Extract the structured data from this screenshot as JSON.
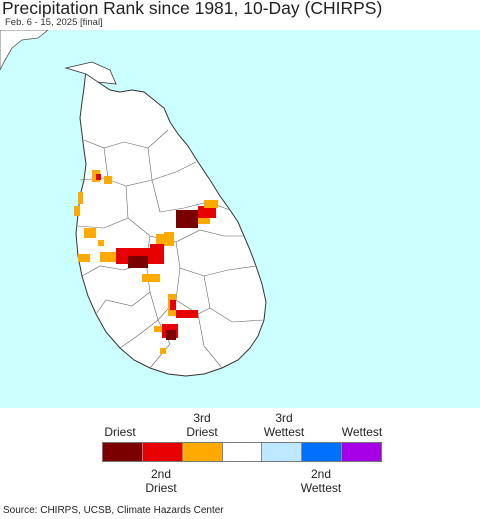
{
  "header": {
    "title": "Precipitation Rank since 1981, 10-Day (CHIRPS)",
    "subtitle": "Feb. 6 - 15, 2025 [final]"
  },
  "colors": {
    "ocean": "#ccffff",
    "land": "#ffffff",
    "boundary": "#555555"
  },
  "legend": {
    "top_labels": [
      "Driest",
      "3rd\nDriest",
      "3rd\nWettest",
      "Wettest"
    ],
    "bottom_labels": [
      "2nd\nDriest",
      "2nd\nWettest"
    ],
    "swatches": [
      {
        "name": "driest",
        "color": "#7a0000"
      },
      {
        "name": "2nd-driest",
        "color": "#e60000"
      },
      {
        "name": "3rd-driest",
        "color": "#ffaa00"
      },
      {
        "name": "normal",
        "color": "#ffffff"
      },
      {
        "name": "3rd-wettest",
        "color": "#bee8ff"
      },
      {
        "name": "2nd-wettest",
        "color": "#0070ff"
      },
      {
        "name": "wettest",
        "color": "#a800e6"
      }
    ]
  },
  "footer": {
    "source": "Source: CHIRPS, UCSB, Climate Hazards Center"
  }
}
